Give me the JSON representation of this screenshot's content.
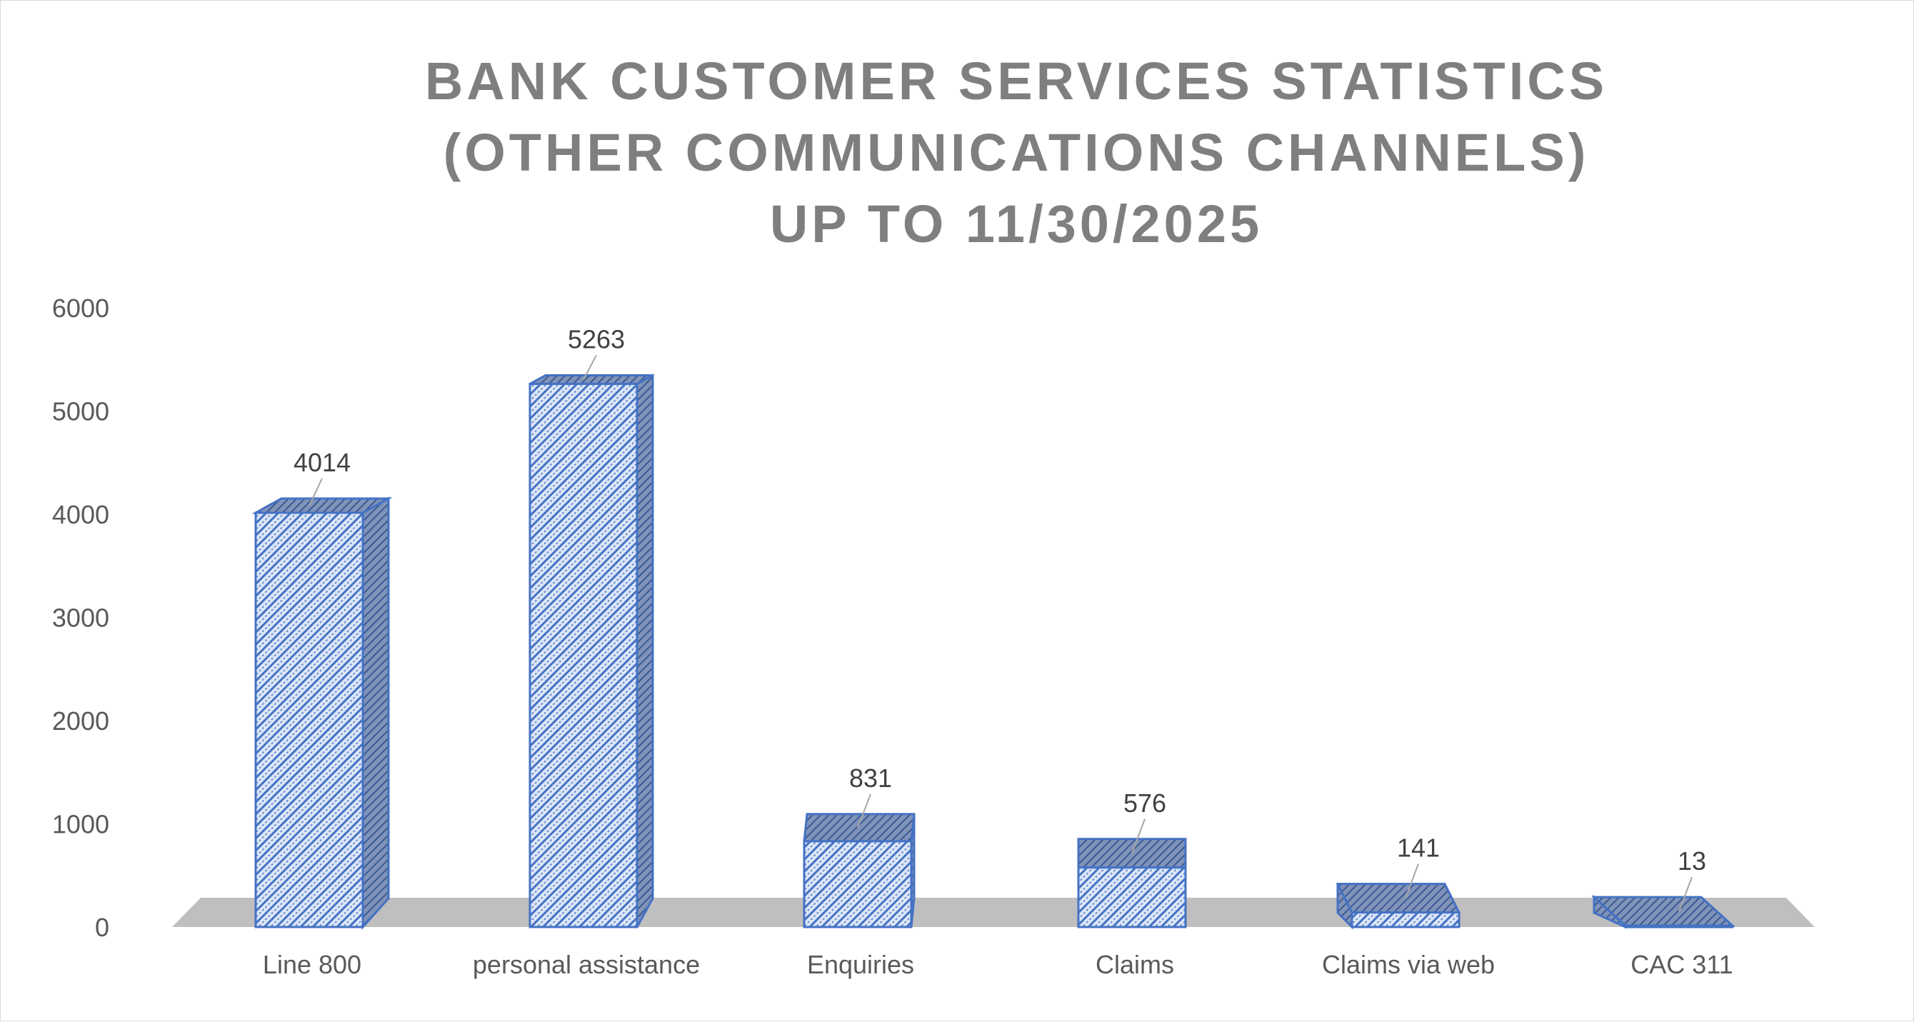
{
  "chart_data": {
    "type": "bar",
    "title_lines": [
      "BANK CUSTOMER SERVICES STATISTICS",
      "(OTHER COMMUNICATIONS CHANNELS)",
      "UP TO 11/30/2025"
    ],
    "categories": [
      "Line 800",
      "personal assistance",
      "Enquiries",
      "Claims",
      "Claims via web",
      "CAC 311"
    ],
    "values": [
      4014,
      5263,
      831,
      576,
      141,
      13
    ],
    "ylim": [
      0,
      6000
    ],
    "yticks": [
      "0",
      "1000",
      "2000",
      "3000",
      "4000",
      "5000",
      "6000"
    ],
    "xlabel": "",
    "ylabel": "",
    "grid": false,
    "legend": "none",
    "colors": {
      "bar_fill": "#dce6f7",
      "bar_hatch": "#4472c4",
      "bar_outline": "#4472c4",
      "bar_top": "#8ea3c9",
      "bar_side": "#7f8fae",
      "floor": "#bfbfbf",
      "title": "#7f7f7f",
      "axis_text": "#595959",
      "label_text": "#404040"
    }
  }
}
